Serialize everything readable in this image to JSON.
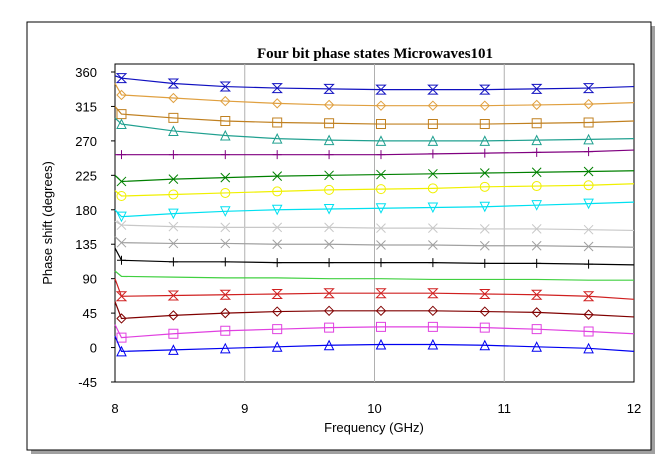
{
  "chart_data": {
    "type": "line",
    "title": "Four bit phase states Microwaves101",
    "xlabel": "Frequency (GHz)",
    "ylabel": "Phase shift (degrees)",
    "x": [
      8,
      8.05,
      8.45,
      8.85,
      9.25,
      9.65,
      10.05,
      10.45,
      10.85,
      11.25,
      11.65,
      12
    ],
    "xlim": [
      8,
      12
    ],
    "xticks": [
      8,
      9,
      10,
      11,
      12
    ],
    "ylim": [
      -45,
      360
    ],
    "yticks": [
      -45,
      0,
      45,
      90,
      135,
      180,
      225,
      270,
      315,
      360
    ],
    "grid": "x",
    "series": [
      {
        "color": "#1010c0",
        "marker": "hourglass",
        "values": [
          355,
          352,
          345,
          341,
          339,
          338,
          337,
          337,
          337,
          338,
          339,
          341
        ]
      },
      {
        "color": "#e0a040",
        "marker": "diamond",
        "values": [
          345,
          330,
          326,
          322,
          319,
          317,
          316,
          316,
          316,
          317,
          318,
          320
        ]
      },
      {
        "color": "#c08020",
        "marker": "square",
        "values": [
          315,
          305,
          300,
          296,
          294,
          293,
          292,
          292,
          292,
          293,
          294,
          296
        ]
      },
      {
        "color": "#20a090",
        "marker": "triangle",
        "values": [
          300,
          292,
          283,
          277,
          273,
          271,
          270,
          270,
          270,
          271,
          272,
          273
        ]
      },
      {
        "color": "#800080",
        "marker": "plus",
        "values": [
          252,
          252,
          252,
          252,
          252,
          252,
          252,
          253,
          254,
          255,
          256,
          258
        ]
      },
      {
        "color": "#008000",
        "marker": "x",
        "values": [
          225,
          217,
          220,
          222,
          224,
          225,
          226,
          227,
          228,
          229,
          230,
          231
        ]
      },
      {
        "color": "#f0f000",
        "marker": "circle",
        "values": [
          205,
          198,
          200,
          202,
          204,
          206,
          207,
          208,
          210,
          211,
          212,
          214
        ]
      },
      {
        "color": "#00e0f0",
        "marker": "tridown",
        "values": [
          180,
          171,
          175,
          178,
          180,
          181,
          182,
          183,
          184,
          186,
          188,
          190
        ]
      },
      {
        "color": "#c8c8c8",
        "marker": "x",
        "values": [
          165,
          160,
          158,
          157,
          157,
          157,
          156,
          156,
          155,
          155,
          154,
          153
        ]
      },
      {
        "color": "#a0a0a0",
        "marker": "x",
        "values": [
          145,
          137,
          136,
          136,
          135,
          135,
          134,
          134,
          133,
          133,
          132,
          131
        ]
      },
      {
        "color": "#000000",
        "marker": "plus",
        "values": [
          130,
          114,
          112,
          112,
          111,
          111,
          111,
          111,
          110,
          110,
          109,
          108
        ]
      },
      {
        "color": "#40d040",
        "marker": "none",
        "values": [
          100,
          93,
          92,
          91,
          91,
          90,
          90,
          89,
          89,
          89,
          88,
          88
        ]
      },
      {
        "color": "#d02020",
        "marker": "hourglass",
        "values": [
          90,
          67,
          68,
          69,
          70,
          71,
          71,
          71,
          70,
          69,
          67,
          63
        ]
      },
      {
        "color": "#800000",
        "marker": "diamond",
        "values": [
          60,
          38,
          42,
          45,
          47,
          48,
          48,
          48,
          47,
          46,
          43,
          40
        ]
      },
      {
        "color": "#e040e0",
        "marker": "square",
        "values": [
          30,
          13,
          18,
          22,
          24,
          26,
          27,
          27,
          26,
          24,
          21,
          18
        ]
      },
      {
        "color": "#0000f0",
        "marker": "triangle",
        "values": [
          15,
          -5,
          -3,
          -1,
          1,
          3,
          4,
          4,
          3,
          1,
          -1,
          -5
        ]
      }
    ]
  }
}
